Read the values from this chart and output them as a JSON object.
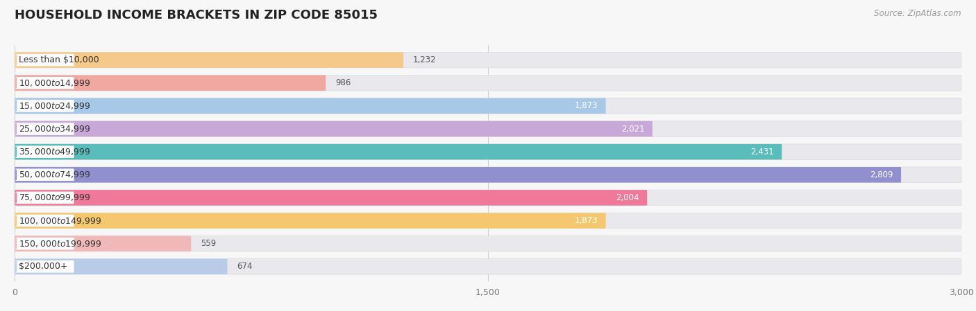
{
  "title": "HOUSEHOLD INCOME BRACKETS IN ZIP CODE 85015",
  "source": "Source: ZipAtlas.com",
  "categories": [
    "Less than $10,000",
    "$10,000 to $14,999",
    "$15,000 to $24,999",
    "$25,000 to $34,999",
    "$35,000 to $49,999",
    "$50,000 to $74,999",
    "$75,000 to $99,999",
    "$100,000 to $149,999",
    "$150,000 to $199,999",
    "$200,000+"
  ],
  "values": [
    1232,
    986,
    1873,
    2021,
    2431,
    2809,
    2004,
    1873,
    559,
    674
  ],
  "bar_colors": [
    "#F5C98A",
    "#F0A8A0",
    "#A8C8E8",
    "#C8A8D8",
    "#5BBCBC",
    "#9090D0",
    "#F07898",
    "#F5C870",
    "#F0B8B8",
    "#B8CCE8"
  ],
  "background_color": "#f7f7f7",
  "bar_bg_color": "#e8e8ed",
  "xlim_max": 3000,
  "xticks": [
    0,
    1500,
    3000
  ],
  "title_fontsize": 13,
  "label_fontsize": 9,
  "value_fontsize": 8.5,
  "bar_height": 0.68,
  "inside_label_threshold": 1300
}
